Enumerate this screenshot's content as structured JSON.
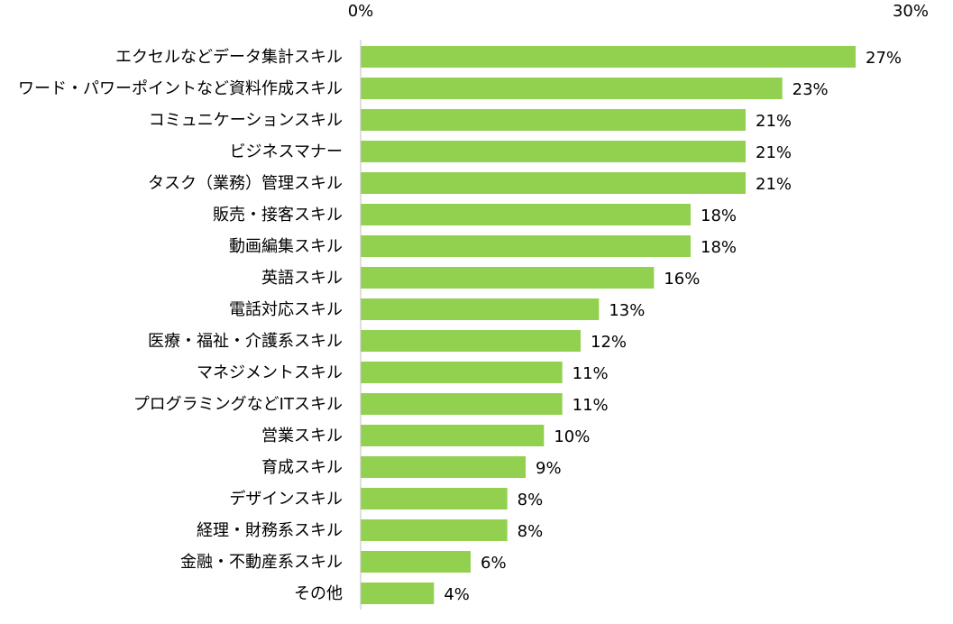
{
  "chart_data": {
    "type": "bar",
    "orientation": "horizontal",
    "title": "",
    "xlabel": "",
    "ylabel": "",
    "xlim": [
      0,
      30
    ],
    "axis_unit": "%",
    "tick_labels": [
      "0%",
      "30%"
    ],
    "tick_values": [
      0,
      30
    ],
    "bar_color": "#92D050",
    "axis_color": "#BFBFBF",
    "grid": false,
    "categories": [
      "エクセルなどデータ集計スキル",
      "ワード・パワーポイントなど資料作成スキル",
      "コミュニケーションスキル",
      "ビジネスマナー",
      "タスク（業務）管理スキル",
      "販売・接客スキル",
      "動画編集スキル",
      "英語スキル",
      "電話対応スキル",
      "医療・福祉・介護系スキル",
      "マネジメントスキル",
      "プログラミングなどITスキル",
      "営業スキル",
      "育成スキル",
      "デザインスキル",
      "経理・財務系スキル",
      "金融・不動産系スキル",
      "その他"
    ],
    "values": [
      27,
      23,
      21,
      21,
      21,
      18,
      18,
      16,
      13,
      12,
      11,
      11,
      10,
      9,
      8,
      8,
      6,
      4
    ],
    "value_labels": [
      "27%",
      "23%",
      "21%",
      "21%",
      "21%",
      "18%",
      "18%",
      "16%",
      "13%",
      "12%",
      "11%",
      "11%",
      "10%",
      "9%",
      "8%",
      "8%",
      "6%",
      "4%"
    ]
  }
}
